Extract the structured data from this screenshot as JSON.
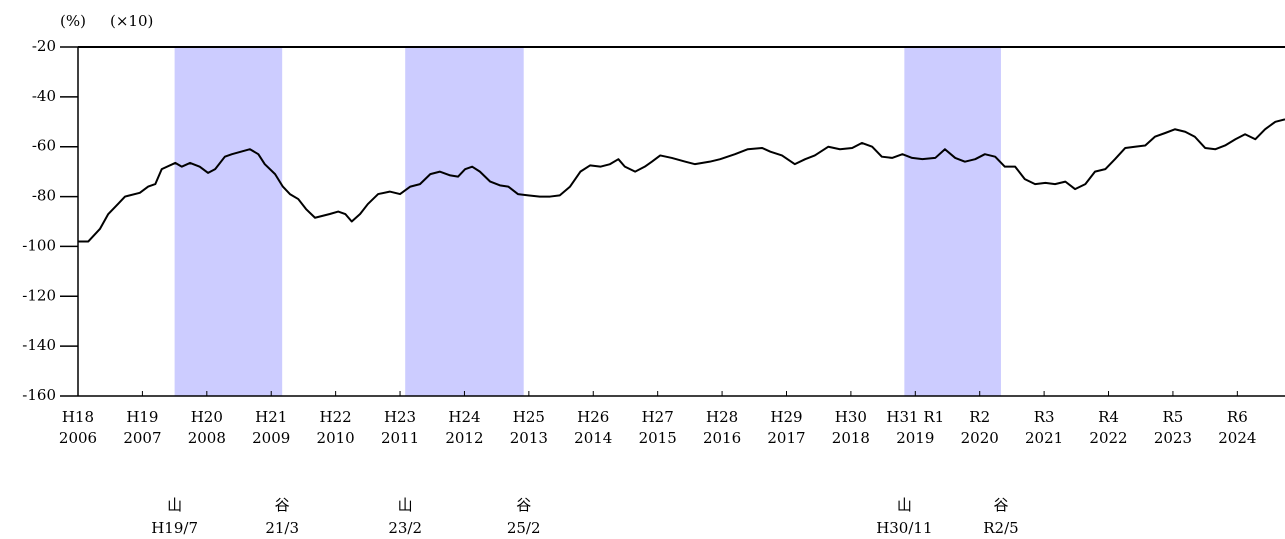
{
  "chart_data": {
    "type": "line",
    "y_unit_label": "(%)",
    "y_scale_label": "(×10)",
    "ylim": [
      -160,
      -20
    ],
    "yticks": [
      -20,
      -40,
      -60,
      -80,
      -100,
      -120,
      -140,
      -160
    ],
    "xlim": [
      2006,
      2024.74
    ],
    "xticks": [
      2006,
      2007,
      2008,
      2009,
      2010,
      2011,
      2012,
      2013,
      2014,
      2015,
      2016,
      2017,
      2018,
      2019,
      2020,
      2021,
      2022,
      2023,
      2024
    ],
    "xtick_era_labels": [
      "H18",
      "H19",
      "H20",
      "H21",
      "H22",
      "H23",
      "H24",
      "H25",
      "H26",
      "H27",
      "H28",
      "H29",
      "H30",
      "H31 R1",
      "R2",
      "R3",
      "R4",
      "R5",
      "R6"
    ],
    "color": "#000000",
    "shade_color": "#ccccff",
    "shaded_periods": [
      {
        "start": 2007.5,
        "end": 2009.17,
        "start_label": "山",
        "start_date": "H19/7",
        "end_label": "谷",
        "end_date": "21/3"
      },
      {
        "start": 2011.08,
        "end": 2012.92,
        "start_label": "山",
        "start_date": "23/2",
        "end_label": "谷",
        "end_date": "25/2"
      },
      {
        "start": 2018.83,
        "end": 2020.33,
        "start_label": "山",
        "start_date": "H30/11",
        "end_label": "谷",
        "end_date": "R2/5"
      }
    ],
    "x": [
      2006.0,
      2006.16,
      2006.34,
      2006.47,
      2006.62,
      2006.73,
      2006.96,
      2007.09,
      2007.2,
      2007.3,
      2007.51,
      2007.61,
      2007.74,
      2007.89,
      2008.02,
      2008.13,
      2008.28,
      2008.39,
      2008.67,
      2008.8,
      2008.9,
      2009.06,
      2009.18,
      2009.29,
      2009.42,
      2009.54,
      2009.68,
      2009.91,
      2010.04,
      2010.15,
      2010.25,
      2010.38,
      2010.5,
      2010.66,
      2010.84,
      2011.0,
      2011.16,
      2011.31,
      2011.47,
      2011.62,
      2011.78,
      2011.9,
      2012.01,
      2012.12,
      2012.24,
      2012.4,
      2012.55,
      2012.68,
      2012.83,
      2012.99,
      2013.17,
      2013.33,
      2013.48,
      2013.64,
      2013.8,
      2013.95,
      2014.11,
      2014.26,
      2014.39,
      2014.49,
      2014.65,
      2014.8,
      2014.91,
      2015.04,
      2015.22,
      2015.43,
      2015.58,
      2015.81,
      2015.97,
      2016.2,
      2016.4,
      2016.62,
      2016.75,
      2016.93,
      2017.13,
      2017.29,
      2017.44,
      2017.65,
      2017.83,
      2018.02,
      2018.17,
      2018.33,
      2018.48,
      2018.64,
      2018.8,
      2018.95,
      2019.11,
      2019.31,
      2019.46,
      2019.62,
      2019.77,
      2019.93,
      2020.08,
      2020.24,
      2020.39,
      2020.55,
      2020.7,
      2020.86,
      2021.02,
      2021.17,
      2021.33,
      2021.48,
      2021.64,
      2021.79,
      2021.95,
      2022.1,
      2022.26,
      2022.41,
      2022.57,
      2022.72,
      2022.88,
      2023.03,
      2023.19,
      2023.34,
      2023.5,
      2023.66,
      2023.81,
      2023.97,
      2024.12,
      2024.28,
      2024.43,
      2024.59,
      2024.74
    ],
    "values": [
      -98,
      -98,
      -93,
      -87,
      -83,
      -80,
      -78.5,
      -76,
      -75,
      -69,
      -66.5,
      -68,
      -66.5,
      -68,
      -70.5,
      -69,
      -64,
      -63,
      -61,
      -63,
      -67,
      -71,
      -76,
      -79,
      -81,
      -85,
      -88.5,
      -87,
      -86,
      -87,
      -90,
      -87,
      -83,
      -79,
      -78,
      -79,
      -76,
      -75,
      -71,
      -70,
      -71.5,
      -72,
      -69,
      -68,
      -70,
      -74,
      -75.5,
      -76,
      -79,
      -79.5,
      -80,
      -80,
      -79.5,
      -76,
      -70,
      -67.5,
      -68,
      -67,
      -65,
      -68,
      -70,
      -68,
      -66,
      -63.5,
      -64.5,
      -66,
      -67,
      -66,
      -65,
      -63,
      -61,
      -60.5,
      -62,
      -63.5,
      -67,
      -65,
      -63.5,
      -60,
      -61,
      -60.5,
      -58.5,
      -60,
      -64,
      -64.5,
      -63,
      -64.5,
      -65,
      -64.5,
      -61,
      -64.5,
      -66,
      -65,
      -63,
      -64,
      -68,
      -68,
      -73,
      -75,
      -74.5,
      -75,
      -74,
      -77,
      -75,
      -70,
      -69,
      -65,
      -60.5,
      -60,
      -59.5,
      -56,
      -54.5,
      -53,
      -54,
      -56,
      -60.5,
      -61,
      -59.5,
      -57,
      -55,
      -57,
      -53,
      -50,
      -49
    ]
  }
}
